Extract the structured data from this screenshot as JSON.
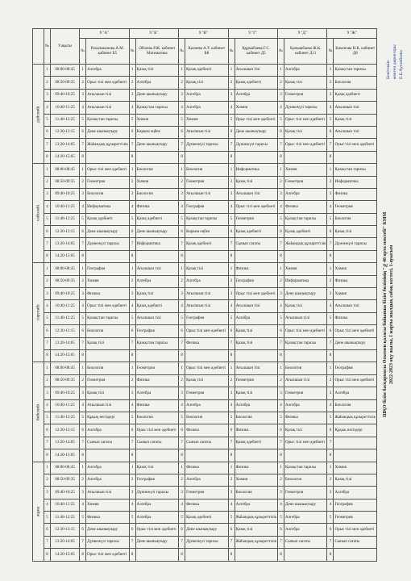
{
  "header": {
    "approval": [
      "Бекітемін:",
      "мектеп директоры",
      "Е.Б.Ауганбаева"
    ],
    "title": [
      "ШҚО білім басқармасы Өскемен қаласы бойынша білім бөлімінің \"№46 орта мектебі\" КММ",
      "2022-2023 оқу жылы, I жарты жылдық сабақ кестесі. 1-ауысым"
    ]
  },
  "table": {
    "col_number": "№",
    "col_time": "Уақыты",
    "classes": [
      {
        "name": "9 \"А\"",
        "teacher": "Рахымжанова А.М. кабинет Б5"
      },
      {
        "name": "9 \"Б\"",
        "teacher": "Әбілева Р.Ж. кабинет Математика"
      },
      {
        "name": "9 \"В\"",
        "teacher": "Калиева А.У. кабинет В8"
      },
      {
        "name": "9 \"Г\"",
        "teacher": "Құрмабаева Г.С. кабинет Д5"
      },
      {
        "name": "9 \"Д\"",
        "teacher": "Қапышбаева Ж.К. кабинет Д11"
      },
      {
        "name": "9 \"Ж\"",
        "teacher": "Көкенова Н.К. кабинет Д8"
      }
    ],
    "lesson_numbers": [
      1,
      2,
      3,
      4,
      5,
      6,
      7,
      8
    ],
    "times": [
      "08:00-08:45",
      "08:50-09:35",
      "09:40-10:25",
      "10:40-11:25",
      "11:40-12:25",
      "12:30-13:15",
      "13:20-14:05",
      "14:20-15:05"
    ],
    "days": [
      {
        "name": "дүйсенбі",
        "rows": [
          [
            "Алгебра",
            "Қазақ тілі",
            "Қазақ әдебиеті",
            "Ағылшын тілі",
            "Алгебра",
            "Қазақстан тарихы"
          ],
          [
            "Орыс тілі мен әдебиеті",
            "Алгебра",
            "Қазақ тілі",
            "Қазақ әдебиеті",
            "Қазақ тілі",
            "Биология"
          ],
          [
            "Ағылшын тілі",
            "Дене шынықтыру",
            "Алгебра",
            "Алгебра",
            "Геометрия",
            "Қазақ әдебиеті"
          ],
          [
            "Ағылшын тілі",
            "Қазақстан тарихы",
            "Алгебра",
            "Химия",
            "Дүниежүзі тарихы",
            "Ағылшын тілі"
          ],
          [
            "Қазақстан тарихы",
            "Химия",
            "Химия",
            "Орыс тілі мен әдебиеті",
            "Орыс тілі мен әдебиеті",
            "Қазақ тілі"
          ],
          [
            "Дене шынықтыру",
            "Көркем еңбек",
            "Ағылшын тілі",
            "Дене шынықтыру",
            "Қазақ тілі",
            "Ағылшын тілі"
          ],
          [
            "Жаһандық құзыреттілік",
            "Дене шынықтыру",
            "Дүниежүзі тарихы",
            "Дүниежүзі тарихы",
            "Орыс тілі мен әдебиеті",
            "Орыс тілі мен әдебиеті"
          ],
          [
            null,
            null,
            null,
            null,
            null,
            null
          ]
        ]
      },
      {
        "name": "сейсенбі",
        "rows": [
          [
            "Орыс тілі мен әдебиеті",
            "Биология",
            "Биология",
            "Информатика",
            "Химия",
            "Қазақстан тарихы"
          ],
          [
            "Геометрия",
            "Химия",
            "Геометрия",
            "Қазақ тілі",
            "Геометрия",
            "Информатика"
          ],
          [
            "Биология",
            "Биология",
            "Ағылшын тілі",
            "Ағылшын тілі",
            "Алгебра",
            "Физика"
          ],
          [
            "Информатика",
            "Физика",
            "География",
            "Орыс тілі мен әдебиеті",
            "Физика",
            "Геометрия"
          ],
          [
            "Қазақ әдебиеті",
            "Қазақ әдебиеті",
            "Қазақстан тарихы",
            "Геометрия",
            "Қазақстан тарихы",
            "Биология"
          ],
          [
            "Дене шынықтыру",
            "Дене шынықтыру",
            "Көркем еңбек",
            "Қазақ әдебиеті",
            "Қазақ әдебиеті",
            "Қазақ тілі"
          ],
          [
            "Дүниежүзі тарихы",
            "Информатика",
            "Қазақ әдебиеті",
            "Сынып сағаты",
            "Жаһандық құзыреттілік",
            "Дүниежүзі тарихы"
          ],
          [
            null,
            null,
            null,
            null,
            null,
            null
          ]
        ]
      },
      {
        "name": "сәрсенбі",
        "rows": [
          [
            "География",
            "Ағылшын тілі",
            "Қазақ тілі",
            "Физика",
            "Химия",
            "Химия"
          ],
          [
            "Химия",
            "Алгебра",
            "Алгебра",
            "География",
            "Информатика",
            "Физика"
          ],
          [
            "Физика",
            "Қазақ тілі",
            "Ағылшын тілі",
            "Орыс тілі мен әдебиеті",
            "Дене шынықтыру",
            "Химия"
          ],
          [
            "Орыс тілі мен әдебиеті",
            "Қазақ әдебиеті",
            "Ағылшын тілі",
            "Ағылшын тілі",
            "Қазақ тілі",
            "Ағылшын тілі"
          ],
          [
            "Қазақстан тарихы",
            "Ағылшын тілі",
            "География",
            "Алгебра",
            "Ағылшын тілі",
            "Физика"
          ],
          [
            "Биология",
            "География",
            "Орыс тілі мен әдебиеті",
            "Қазақ тілі",
            "Орыс тілі мен әдебиеті",
            "Орыс тілі мен әдебиеті"
          ],
          [
            "Қазақ тілі",
            "Қазақстан тарихы",
            "Физика",
            "Қазақ тілі",
            "Қазақстан тарихы",
            "Дене шынықтыру"
          ],
          [
            null,
            null,
            null,
            null,
            null,
            null
          ]
        ]
      },
      {
        "name": "бейсенбі",
        "rows": [
          [
            "Биология",
            "Геометрия",
            "Орыс тілі мен әдебиеті",
            "Ағылшын тілі",
            "Биология",
            "География"
          ],
          [
            "Геометрия",
            "Физика",
            "Қазақ тілі",
            "Геометрия",
            "Ағылшын тілі",
            "Орыс тілі мен әдебиеті"
          ],
          [
            "Қазақ тілі",
            "Алгебра",
            "Геометрия",
            "Қазақ тілі",
            "Геометрия",
            "Алгебра"
          ],
          [
            "Ағылшын тілі",
            "Физика",
            "Алгебра",
            "Алгебра",
            "Алгебра",
            "Биология"
          ],
          [
            "Құқық негіздері",
            "Биология",
            "Биология",
            "Биология",
            "Физика",
            "Жаһандық құзыреттілік"
          ],
          [
            "Алгебра",
            "Орыс тілі мен әдебиеті",
            "Физика",
            "Физика",
            "Қазақ тілі",
            "Құқық негіздері"
          ],
          [
            "Сынып сағаты",
            "Сынып сағаты",
            "Сынып сағаты",
            "Қазақ әдебиеті",
            "Орыс тілі мен әдебиеті",
            null
          ],
          [
            null,
            null,
            null,
            null,
            null,
            null
          ]
        ]
      },
      {
        "name": "жұма",
        "rows": [
          [
            "Алгебра",
            "Қазақ тілі",
            "Физика",
            "Физика",
            "Қазақстан тарихы",
            "Химия"
          ],
          [
            "Алгебра",
            "География",
            "Алгебра",
            "Химия",
            "Биология",
            "Қазақ тілі"
          ],
          [
            "Ағылшын тілі",
            "Дүниежүзі тарихы",
            "Геометрия",
            "Биология",
            "Геометрия",
            "Алгебра"
          ],
          [
            "Химия",
            "Алгебра",
            "Физика",
            "Алгебра",
            "Дене шынықтыру",
            "География"
          ],
          [
            "Физика",
            "Алгебра",
            "Қазақ әдебиеті",
            "Жаһандық құзыреттілік",
            "Алгебра",
            "Геометрия"
          ],
          [
            "Дене шынықтыру",
            "Орыс тілі мен әдебиеті",
            "Дене шынықтыру",
            "Қазақ тілі",
            "Алгебра",
            "Орыс тілі мен әдебиеті"
          ],
          [
            "Дүниежүзі тарихы",
            "Дене шынықтыру",
            "Дүниежүзі тарихы",
            "Жаһандық құзыреттілік",
            "Сынып сағаты",
            "Сынып сағаты"
          ],
          [
            "Орыс тілі мен әдебиеті",
            null,
            null,
            null,
            null,
            null
          ]
        ]
      }
    ]
  }
}
